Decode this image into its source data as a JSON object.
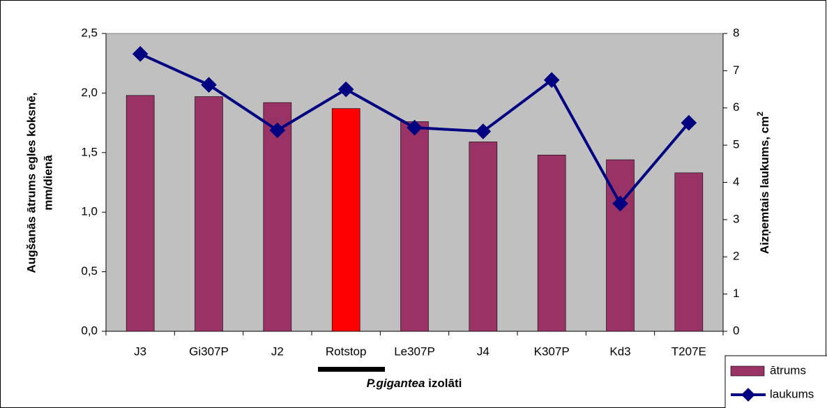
{
  "chart_data": {
    "type": "bar",
    "ylabel": [
      "Augšanās ātrums egles koksnē,",
      "mm/dienā"
    ],
    "y2label": [
      "Aizņemtais laukums, cm",
      "2"
    ],
    "xlabel": [
      "P.gigantea",
      "izolāti"
    ],
    "categories": [
      "J3",
      "Gi307P",
      "J2",
      "Rotstop",
      "Le307P",
      "J4",
      "K307P",
      "Kd3",
      "T207E"
    ],
    "series": [
      {
        "name": "ātrums",
        "type": "bar",
        "color": "#993366",
        "colors": [
          "#993366",
          "#993366",
          "#993366",
          "#ff0000",
          "#993366",
          "#993366",
          "#993366",
          "#993366",
          "#993366"
        ],
        "values": [
          1.98,
          1.97,
          1.92,
          1.87,
          1.76,
          1.59,
          1.48,
          1.44,
          1.33
        ]
      },
      {
        "name": "laukums",
        "type": "line",
        "axis": "y2",
        "color": "#000080",
        "values": [
          7.45,
          6.62,
          5.4,
          6.5,
          5.47,
          5.37,
          6.75,
          3.43,
          5.6
        ]
      }
    ],
    "ylim": [
      0,
      2.5
    ],
    "yticks": [
      {
        "value": 0,
        "label": "0,0"
      },
      {
        "value": 0.5,
        "label": "0,5"
      },
      {
        "value": 1,
        "label": "1,0"
      },
      {
        "value": 1.5,
        "label": "1,5"
      },
      {
        "value": 2,
        "label": "2,0"
      },
      {
        "value": 2.5,
        "label": "2,5"
      }
    ],
    "y2lim": [
      0,
      8
    ],
    "y2ticks": [
      0,
      1,
      2,
      3,
      4,
      5,
      6,
      7,
      8
    ],
    "plot_background": "#c0c0c0"
  }
}
